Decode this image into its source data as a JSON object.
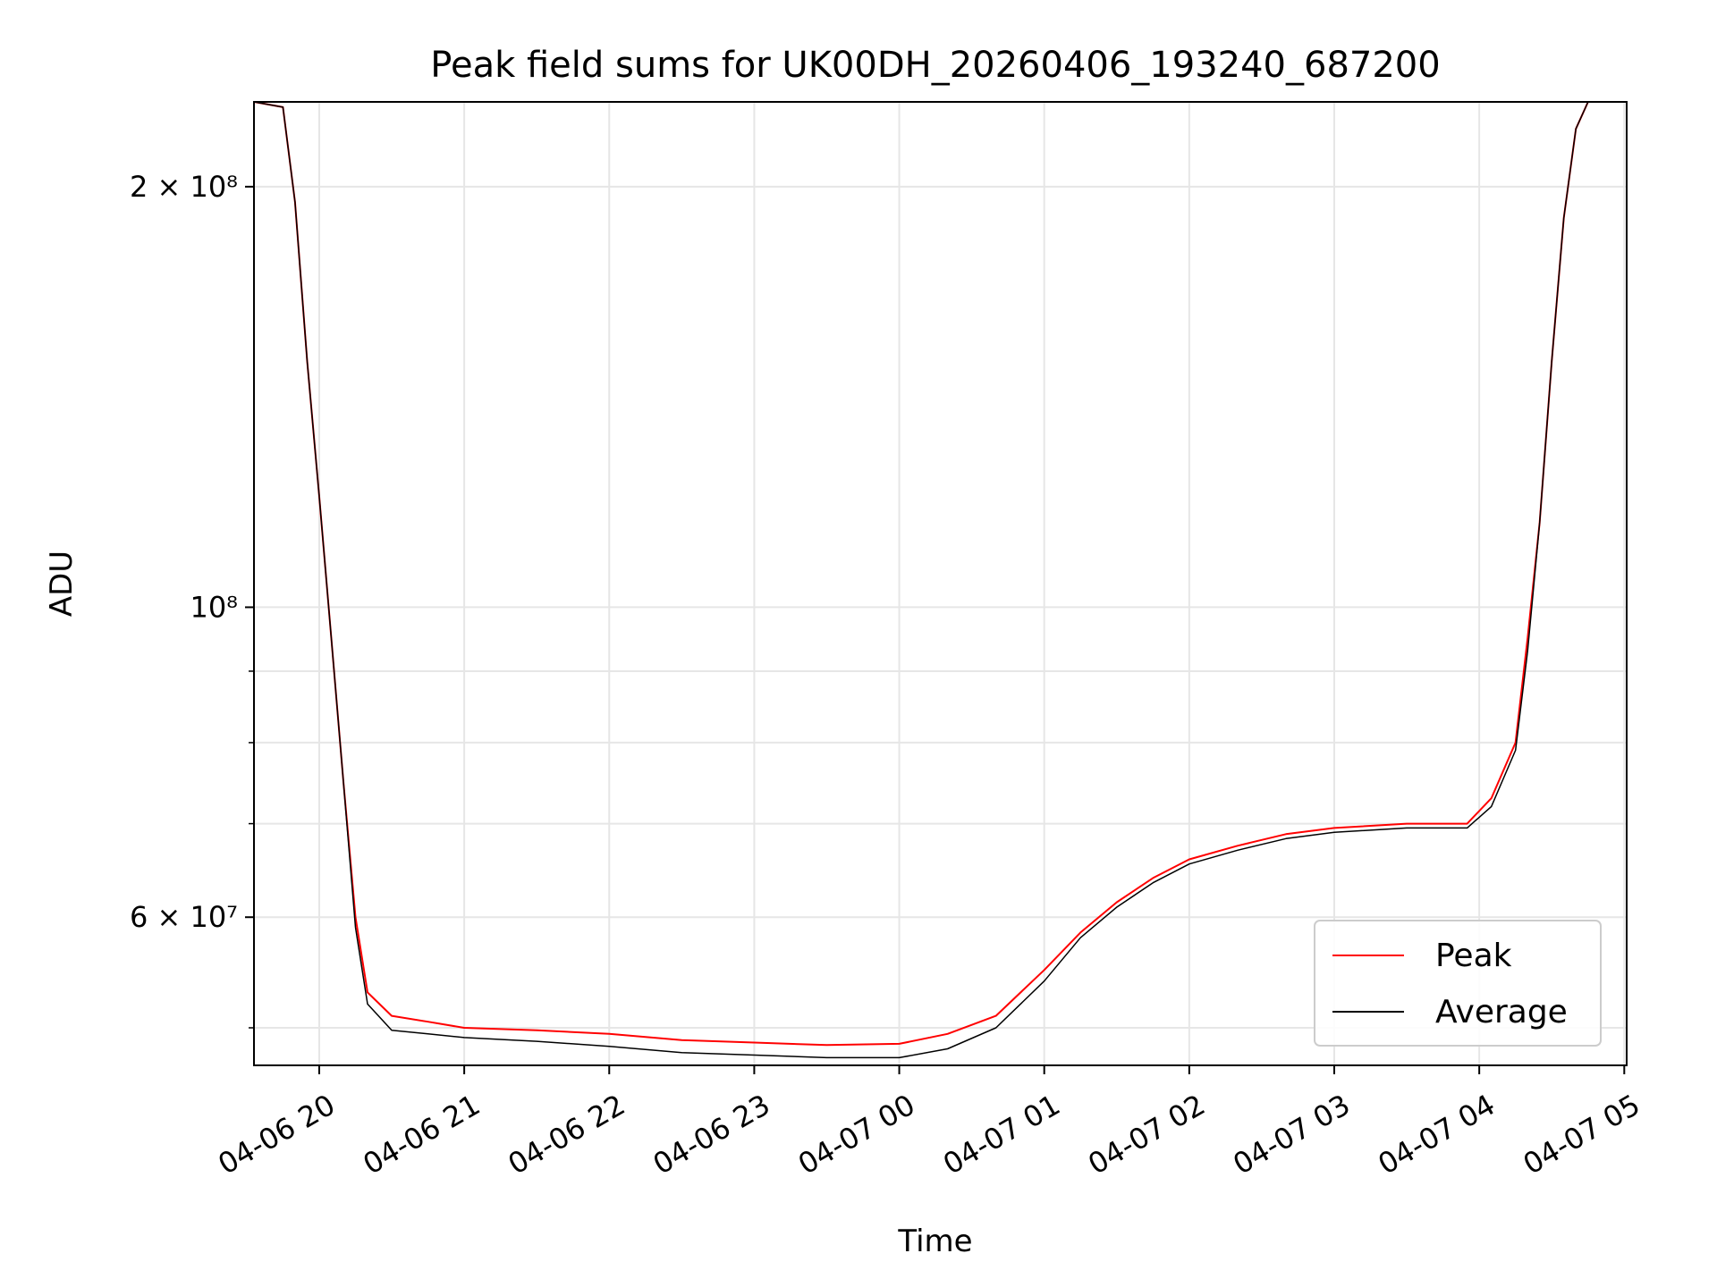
{
  "chart_data": {
    "type": "line",
    "title": "Peak field sums for UK00DH_20260406_193240_687200",
    "xlabel": "Time",
    "ylabel": "ADU",
    "yscale": "log",
    "ylim": [
      47000000,
      230000000
    ],
    "xlim": [
      "2026-04-06 19:33",
      "2026-04-07 05:01"
    ],
    "grid": true,
    "legend_position": "lower-right",
    "x_ticks": [
      {
        "t": "2026-04-06 20:00",
        "label": "04-06 20"
      },
      {
        "t": "2026-04-06 21:00",
        "label": "04-06 21"
      },
      {
        "t": "2026-04-06 22:00",
        "label": "04-06 22"
      },
      {
        "t": "2026-04-06 23:00",
        "label": "04-06 23"
      },
      {
        "t": "2026-04-07 00:00",
        "label": "04-07 00"
      },
      {
        "t": "2026-04-07 01:00",
        "label": "04-07 01"
      },
      {
        "t": "2026-04-07 02:00",
        "label": "04-07 02"
      },
      {
        "t": "2026-04-07 03:00",
        "label": "04-07 03"
      },
      {
        "t": "2026-04-07 04:00",
        "label": "04-07 04"
      },
      {
        "t": "2026-04-07 05:00",
        "label": "04-07 05"
      }
    ],
    "y_major_ticks": [
      {
        "v": 60000000,
        "label": "6 × 10⁷"
      },
      {
        "v": 100000000,
        "label": "10⁸"
      },
      {
        "v": 200000000,
        "label": "2 × 10⁸"
      }
    ],
    "y_minor_ticks": [
      50000000,
      70000000,
      80000000,
      90000000
    ],
    "series": [
      {
        "name": "Peak",
        "color": "#ff0000",
        "x": [
          "2026-04-06 19:33",
          "2026-04-06 19:45",
          "2026-04-06 19:50",
          "2026-04-06 19:55",
          "2026-04-06 20:00",
          "2026-04-06 20:05",
          "2026-04-06 20:10",
          "2026-04-06 20:15",
          "2026-04-06 20:20",
          "2026-04-06 20:30",
          "2026-04-06 20:45",
          "2026-04-06 21:00",
          "2026-04-06 21:30",
          "2026-04-06 22:00",
          "2026-04-06 22:30",
          "2026-04-06 23:00",
          "2026-04-06 23:30",
          "2026-04-07 00:00",
          "2026-04-07 00:20",
          "2026-04-07 00:40",
          "2026-04-07 01:00",
          "2026-04-07 01:15",
          "2026-04-07 01:30",
          "2026-04-07 01:45",
          "2026-04-07 02:00",
          "2026-04-07 02:20",
          "2026-04-07 02:40",
          "2026-04-07 03:00",
          "2026-04-07 03:30",
          "2026-04-07 03:55",
          "2026-04-07 04:05",
          "2026-04-07 04:15",
          "2026-04-07 04:20",
          "2026-04-07 04:25",
          "2026-04-07 04:30",
          "2026-04-07 04:35",
          "2026-04-07 04:40",
          "2026-04-07 04:45",
          "2026-04-07 04:50"
        ],
        "values": [
          230000000,
          228000000,
          195000000,
          150000000,
          120000000,
          95000000,
          75000000,
          60000000,
          53000000,
          51000000,
          50500000,
          50000000,
          49800000,
          49500000,
          49000000,
          48800000,
          48600000,
          48700000,
          49500000,
          51000000,
          55000000,
          58500000,
          61500000,
          64000000,
          66000000,
          67500000,
          68800000,
          69500000,
          70000000,
          70000000,
          73000000,
          80000000,
          95000000,
          115000000,
          150000000,
          190000000,
          220000000,
          230000000,
          230000000
        ]
      },
      {
        "name": "Average",
        "color": "#000000",
        "x": [
          "2026-04-06 19:33",
          "2026-04-06 19:45",
          "2026-04-06 19:50",
          "2026-04-06 19:55",
          "2026-04-06 20:00",
          "2026-04-06 20:05",
          "2026-04-06 20:10",
          "2026-04-06 20:15",
          "2026-04-06 20:20",
          "2026-04-06 20:30",
          "2026-04-06 20:45",
          "2026-04-06 21:00",
          "2026-04-06 21:30",
          "2026-04-06 22:00",
          "2026-04-06 22:30",
          "2026-04-06 23:00",
          "2026-04-06 23:30",
          "2026-04-07 00:00",
          "2026-04-07 00:20",
          "2026-04-07 00:40",
          "2026-04-07 01:00",
          "2026-04-07 01:15",
          "2026-04-07 01:30",
          "2026-04-07 01:45",
          "2026-04-07 02:00",
          "2026-04-07 02:20",
          "2026-04-07 02:40",
          "2026-04-07 03:00",
          "2026-04-07 03:30",
          "2026-04-07 03:55",
          "2026-04-07 04:05",
          "2026-04-07 04:15",
          "2026-04-07 04:20",
          "2026-04-07 04:25",
          "2026-04-07 04:30",
          "2026-04-07 04:35",
          "2026-04-07 04:40",
          "2026-04-07 04:45",
          "2026-04-07 04:50"
        ],
        "values": [
          230000000,
          228000000,
          195000000,
          150000000,
          120000000,
          95000000,
          75000000,
          59000000,
          52000000,
          49800000,
          49500000,
          49200000,
          48900000,
          48500000,
          48000000,
          47800000,
          47600000,
          47600000,
          48300000,
          50000000,
          54000000,
          58000000,
          61000000,
          63500000,
          65500000,
          67000000,
          68300000,
          69000000,
          69500000,
          69500000,
          72000000,
          79000000,
          93000000,
          115000000,
          150000000,
          190000000,
          220000000,
          230000000,
          230000000
        ]
      }
    ]
  }
}
